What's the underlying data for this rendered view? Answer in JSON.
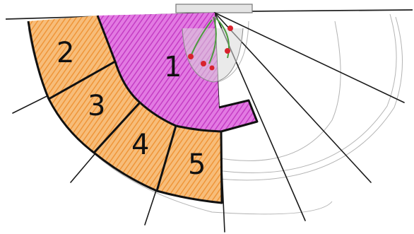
{
  "zones": [
    {
      "id": "zone-1",
      "label": "1",
      "fill": "#d64fd6"
    },
    {
      "id": "zone-2",
      "label": "2",
      "fill": "#f3a24e"
    },
    {
      "id": "zone-3",
      "label": "3",
      "fill": "#f3a24e"
    },
    {
      "id": "zone-4",
      "label": "4",
      "fill": "#f3a24e"
    },
    {
      "id": "zone-5",
      "label": "5",
      "fill": "#f3a24e"
    }
  ],
  "colors": {
    "magenta_zone": "#d64fd6",
    "orange_zones": "#f3a24e",
    "outline": "#111111",
    "pencil_sketch": "#9a9a9a",
    "plant_leaves": "#4c9a3e",
    "plant_berries": "#d8222d"
  },
  "icons": [
    "plant-icon"
  ]
}
